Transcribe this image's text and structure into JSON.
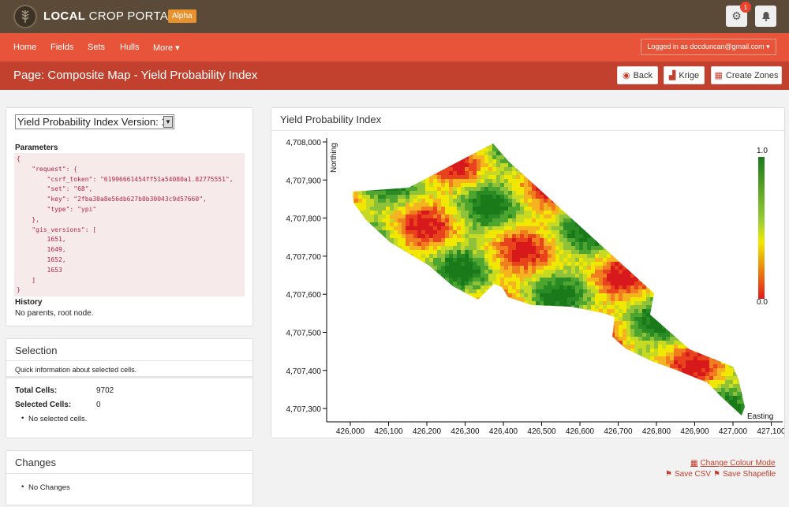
{
  "app": {
    "name_bold": "LOCAL",
    "name_rest": " CROP PORTAL",
    "badge": "Alpha",
    "notification_count": "1"
  },
  "nav": {
    "items": [
      "Home",
      "Fields",
      "Sets",
      "Hulls",
      "More ▾"
    ],
    "active": "Sets",
    "login": "Logged in as docduncan@gmail.com ▾"
  },
  "page": {
    "title": "Page: Composite Map - Yield Probability Index",
    "back_label": "Back",
    "krige_label": "Krige",
    "zones_label": "Create Zones"
  },
  "params": {
    "version_select": "Yield Probability Index Version: 1",
    "label": "Parameters",
    "code": "{\n    \"request\": {\n        \"csrf_token\": \"61996661454ff51a54080a1.82775551\",\n        \"set\": \"68\",\n        \"key\": \"2fba30a8e56db627b0b30043c9d57660\",\n        \"type\": \"ypi\"\n    },\n    \"gis_versions\": [\n        1651,\n        1649,\n        1652,\n        1653\n    ]\n}",
    "history_label": "History",
    "history_text": "No parents, root node."
  },
  "selection": {
    "title": "Selection",
    "subtitle": "Quick information about selected cells.",
    "total_label": "Total Cells:",
    "total_value": "9702",
    "selected_label": "Selected Cells:",
    "selected_value": "0",
    "note": "No selected cells."
  },
  "changes": {
    "title": "Changes",
    "note": "No Changes"
  },
  "map": {
    "title": "Yield Probability Index",
    "ylabel": "Northing",
    "xlabel": "Easting",
    "yticks": [
      "4,708,000",
      "4,707,900",
      "4,707,800",
      "4,707,700",
      "4,707,600",
      "4,707,500",
      "4,707,400",
      "4,707,300"
    ],
    "xticks": [
      "426,000",
      "426,100",
      "426,200",
      "426,300",
      "426,400",
      "426,500",
      "426,600",
      "426,700",
      "426,800",
      "426,900",
      "427,000",
      "427,100"
    ],
    "legend_max": "1.0",
    "legend_min": "0.0",
    "colors": {
      "low": "#e31a1c",
      "mid": "#f0e800",
      "high": "#1a7a1a"
    }
  },
  "links": {
    "colour_mode": "Change Colour Mode",
    "save_csv": "Save CSV",
    "save_shapefile": "Save Shapefile"
  }
}
